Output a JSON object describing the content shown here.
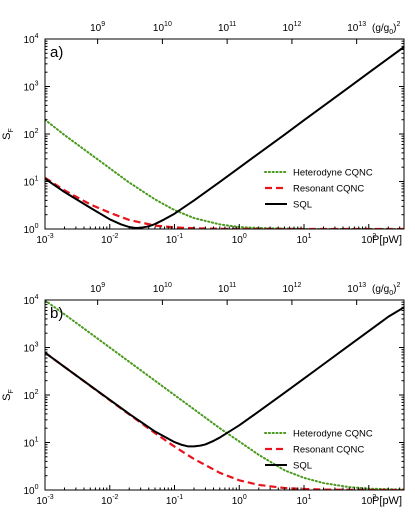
{
  "chart_data": [
    {
      "type": "line",
      "panel_label": "a)",
      "ylabel": "S",
      "ylabel_sub": "F",
      "xlabel": "P[pW]",
      "top_axis_label": "(g/g",
      "top_axis_label_sub": "0",
      "top_axis_label_tail": ")",
      "top_axis_label_sup": "2",
      "xscale": "log",
      "yscale": "log",
      "xlim": [
        0.001,
        350
      ],
      "ylim": [
        1,
        10000
      ],
      "x_ticks": [
        {
          "base": "10",
          "exp": "-3",
          "value": 0.001
        },
        {
          "base": "10",
          "exp": "-2",
          "value": 0.01
        },
        {
          "base": "10",
          "exp": "-1",
          "value": 0.1
        },
        {
          "base": "10",
          "exp": "0",
          "value": 1
        },
        {
          "base": "10",
          "exp": "1",
          "value": 10
        },
        {
          "base": "10",
          "exp": "2",
          "value": 100
        }
      ],
      "y_ticks": [
        {
          "base": "10",
          "exp": "0",
          "value": 1
        },
        {
          "base": "10",
          "exp": "1",
          "value": 10
        },
        {
          "base": "10",
          "exp": "2",
          "value": 100
        },
        {
          "base": "10",
          "exp": "3",
          "value": 1000
        },
        {
          "base": "10",
          "exp": "4",
          "value": 10000
        }
      ],
      "top_ticks": [
        {
          "base": "10",
          "exp": "9",
          "value": 0.0065
        },
        {
          "base": "10",
          "exp": "10",
          "value": 0.065
        },
        {
          "base": "10",
          "exp": "11",
          "value": 0.65
        },
        {
          "base": "10",
          "exp": "12",
          "value": 6.5
        },
        {
          "base": "10",
          "exp": "13",
          "value": 65
        }
      ],
      "legend_position": "lower-right",
      "series": [
        {
          "name": "Heterodyne CQNC",
          "color": "#4a9a1f",
          "style": "dotted",
          "x": [
            0.001,
            0.002,
            0.005,
            0.01,
            0.02,
            0.05,
            0.1,
            0.2,
            0.5,
            1,
            2,
            5,
            10,
            100,
            350
          ],
          "y": [
            200,
            95,
            38,
            19,
            9.5,
            4.2,
            2.5,
            1.7,
            1.25,
            1.1,
            1.05,
            1.02,
            1.0,
            1.0,
            1.0
          ]
        },
        {
          "name": "Resonant CQNC",
          "color": "#e8141b",
          "style": "dashed",
          "x": [
            0.001,
            0.002,
            0.005,
            0.01,
            0.02,
            0.05,
            0.1,
            0.2,
            0.5,
            1,
            10,
            350
          ],
          "y": [
            12,
            6.5,
            3.3,
            2.2,
            1.55,
            1.18,
            1.08,
            1.04,
            1.01,
            1.0,
            1.0,
            1.0
          ]
        },
        {
          "name": "SQL",
          "color": "#000000",
          "style": "solid",
          "x": [
            0.001,
            0.002,
            0.005,
            0.01,
            0.015,
            0.02,
            0.025,
            0.03,
            0.04,
            0.05,
            0.07,
            0.1,
            0.2,
            0.5,
            1,
            2,
            5,
            10,
            20,
            50,
            100,
            200,
            350
          ],
          "y": [
            11.5,
            6.0,
            2.8,
            1.6,
            1.25,
            1.1,
            1.05,
            1.06,
            1.14,
            1.27,
            1.6,
            2.1,
            4.0,
            9.8,
            19.5,
            39,
            97,
            195,
            390,
            975,
            1950,
            3900,
            6800
          ]
        }
      ]
    },
    {
      "type": "line",
      "panel_label": "b)",
      "ylabel": "S",
      "ylabel_sub": "F",
      "xlabel": "P[pW]",
      "top_axis_label": "(g/g",
      "top_axis_label_sub": "0",
      "top_axis_label_tail": ")",
      "top_axis_label_sup": "2",
      "xscale": "log",
      "yscale": "log",
      "xlim": [
        0.001,
        350
      ],
      "ylim": [
        1,
        10000
      ],
      "x_ticks": [
        {
          "base": "10",
          "exp": "-3",
          "value": 0.001
        },
        {
          "base": "10",
          "exp": "-2",
          "value": 0.01
        },
        {
          "base": "10",
          "exp": "-1",
          "value": 0.1
        },
        {
          "base": "10",
          "exp": "0",
          "value": 1
        },
        {
          "base": "10",
          "exp": "1",
          "value": 10
        },
        {
          "base": "10",
          "exp": "2",
          "value": 100
        }
      ],
      "y_ticks": [
        {
          "base": "10",
          "exp": "0",
          "value": 1
        },
        {
          "base": "10",
          "exp": "1",
          "value": 10
        },
        {
          "base": "10",
          "exp": "2",
          "value": 100
        },
        {
          "base": "10",
          "exp": "3",
          "value": 1000
        },
        {
          "base": "10",
          "exp": "4",
          "value": 10000
        }
      ],
      "top_ticks": [
        {
          "base": "10",
          "exp": "9",
          "value": 0.0065
        },
        {
          "base": "10",
          "exp": "10",
          "value": 0.065
        },
        {
          "base": "10",
          "exp": "11",
          "value": 0.65
        },
        {
          "base": "10",
          "exp": "12",
          "value": 6.5
        },
        {
          "base": "10",
          "exp": "13",
          "value": 65
        }
      ],
      "legend_position": "lower-right",
      "series": [
        {
          "name": "Heterodyne CQNC",
          "color": "#4a9a1f",
          "style": "dotted",
          "x": [
            0.001,
            0.002,
            0.005,
            0.01,
            0.02,
            0.05,
            0.1,
            0.2,
            0.5,
            1,
            2,
            5,
            10,
            20,
            50,
            100,
            350
          ],
          "y": [
            9800,
            5000,
            2000,
            1000,
            500,
            200,
            100,
            50,
            20,
            10.5,
            5.5,
            2.6,
            1.8,
            1.4,
            1.15,
            1.07,
            1.02
          ]
        },
        {
          "name": "Resonant CQNC",
          "color": "#e8141b",
          "style": "dashed",
          "x": [
            0.001,
            0.002,
            0.005,
            0.01,
            0.02,
            0.05,
            0.07,
            0.1,
            0.2,
            0.5,
            1,
            2,
            5,
            10,
            20,
            50,
            100,
            350
          ],
          "y": [
            780,
            390,
            156,
            78,
            39,
            15.8,
            11.5,
            8.2,
            4.5,
            2.3,
            1.6,
            1.28,
            1.1,
            1.05,
            1.02,
            1.01,
            1.0,
            1.0
          ]
        },
        {
          "name": "SQL",
          "color": "#000000",
          "style": "solid",
          "x": [
            0.001,
            0.002,
            0.005,
            0.01,
            0.02,
            0.05,
            0.1,
            0.13,
            0.16,
            0.2,
            0.25,
            0.3,
            0.4,
            0.5,
            1,
            2,
            5,
            10,
            20,
            50,
            100,
            200,
            350
          ],
          "y": [
            780,
            390,
            157,
            79,
            40,
            17,
            10.2,
            8.9,
            8.3,
            8.3,
            8.6,
            9.1,
            10.8,
            12.7,
            23,
            45,
            111,
            222,
            444,
            1110,
            2220,
            4440,
            7000
          ]
        }
      ]
    }
  ]
}
